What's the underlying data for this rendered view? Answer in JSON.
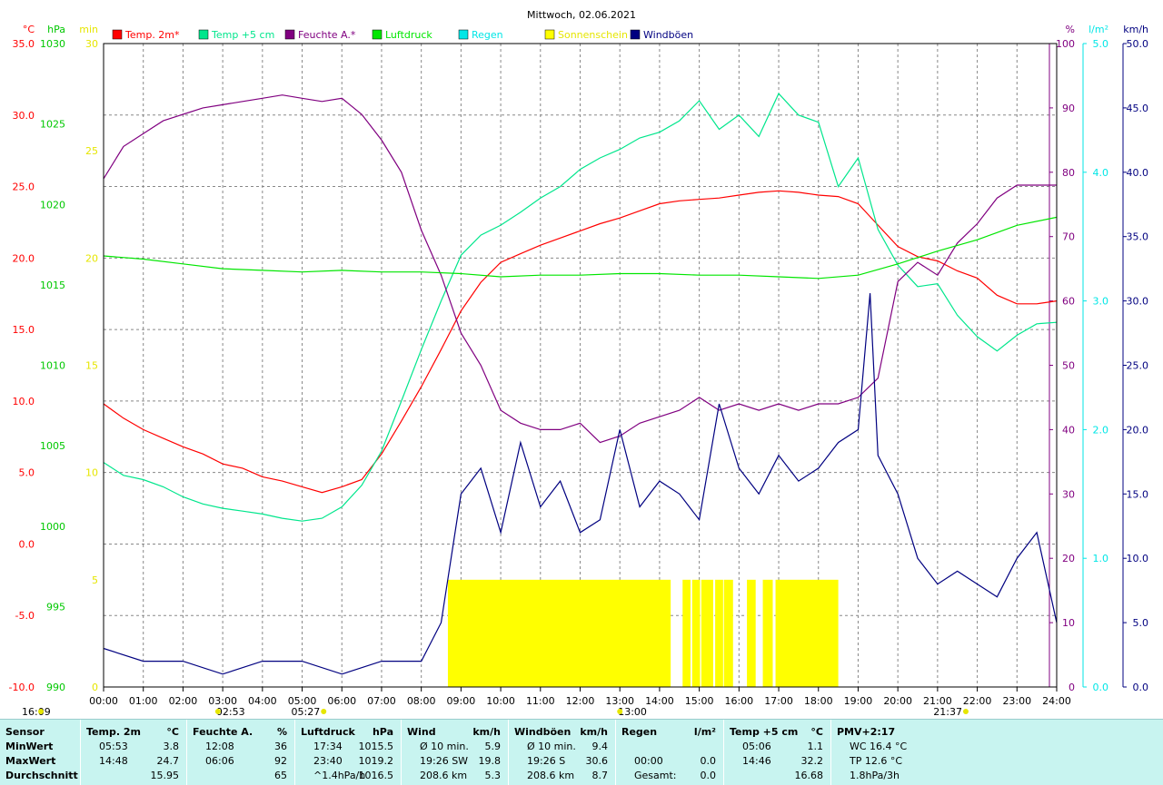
{
  "chart_data": {
    "type": "line",
    "title": "Mittwoch, 02.06.2021",
    "x_axis": {
      "range_hours": [
        0,
        24
      ],
      "ticks": [
        "00:00",
        "01:00",
        "02:00",
        "03:00",
        "04:00",
        "05:00",
        "06:00",
        "07:00",
        "08:00",
        "09:00",
        "10:00",
        "11:00",
        "12:00",
        "13:00",
        "14:00",
        "15:00",
        "16:00",
        "17:00",
        "18:00",
        "19:00",
        "20:00",
        "21:00",
        "22:00",
        "23:00",
        "24:00"
      ],
      "markers": [
        {
          "label": "16:09",
          "hour": -1.0,
          "row": 2,
          "color": "#e6e600"
        },
        {
          "label": "02:53",
          "hour": 2.88,
          "row": 1,
          "color": "#e6e600"
        },
        {
          "label": "05:27",
          "hour": 5.45,
          "row": 2,
          "color": "#e6e600"
        },
        {
          "label": "13:00",
          "hour": 13.0,
          "row": 1,
          "color": "#e6e600"
        },
        {
          "label": "21:37",
          "hour": 21.62,
          "row": 2,
          "color": "#e6e600"
        }
      ]
    },
    "axes": [
      {
        "unit": "°C",
        "color": "#ff0000",
        "ticks": [
          "-10.0",
          "-5.0",
          "0.0",
          "5.0",
          "10.0",
          "15.0",
          "20.0",
          "25.0",
          "30.0",
          "35.0"
        ],
        "range": [
          -10,
          35
        ]
      },
      {
        "unit": "hPa",
        "color": "#00c800",
        "ticks": [
          "990",
          "995",
          "1000",
          "1005",
          "1010",
          "1015",
          "1020",
          "1025",
          "1030"
        ],
        "range": [
          990,
          1030
        ]
      },
      {
        "unit": "min",
        "color": "#e6e600",
        "ticks": [
          "0",
          "5",
          "10",
          "15",
          "20",
          "25",
          "30"
        ],
        "range": [
          0,
          30
        ]
      },
      {
        "unit": "%",
        "color": "#800080",
        "ticks": [
          "0",
          "10",
          "20",
          "30",
          "40",
          "50",
          "60",
          "70",
          "80",
          "90",
          "100"
        ],
        "range": [
          0,
          100
        ]
      },
      {
        "unit": "l/m²",
        "color": "#00e6e6",
        "ticks": [
          "0.0",
          "1.0",
          "2.0",
          "3.0",
          "4.0",
          "5.0"
        ],
        "range": [
          0,
          5
        ]
      },
      {
        "unit": "km/h",
        "color": "#000080",
        "ticks": [
          "0.0",
          "5.0",
          "10.0",
          "15.0",
          "20.0",
          "25.0",
          "30.0",
          "35.0",
          "40.0",
          "45.0",
          "50.0"
        ],
        "range": [
          0,
          50
        ]
      }
    ],
    "legend": [
      {
        "name": "Temp. 2m*",
        "color": "#ff0000"
      },
      {
        "name": "Temp +5 cm",
        "color": "#00e68c"
      },
      {
        "name": "Feuchte A.*",
        "color": "#800080"
      },
      {
        "name": "Luftdruck",
        "color": "#00e600"
      },
      {
        "name": "Regen",
        "color": "#00e6e6"
      },
      {
        "name": "Sonnenschein",
        "color": "#ffff00"
      },
      {
        "name": "Windböen",
        "color": "#000080"
      }
    ],
    "series": [
      {
        "name": "Temp. 2m*",
        "axis": "°C",
        "color": "#ff0000",
        "x": [
          0,
          0.5,
          1,
          1.5,
          2,
          2.5,
          3,
          3.5,
          4,
          4.5,
          5,
          5.5,
          6,
          6.5,
          7,
          7.5,
          8,
          8.5,
          9,
          9.5,
          10,
          10.5,
          11,
          11.5,
          12,
          12.5,
          13,
          13.5,
          14,
          14.5,
          15,
          15.5,
          16,
          16.5,
          17,
          17.5,
          18,
          18.5,
          19,
          19.5,
          20,
          20.5,
          21,
          21.5,
          22,
          22.5,
          23,
          23.5,
          24
        ],
        "values": [
          9.8,
          8.8,
          8.0,
          7.4,
          6.8,
          6.3,
          5.6,
          5.3,
          4.7,
          4.4,
          4.0,
          3.6,
          4.0,
          4.5,
          6.3,
          8.6,
          11.0,
          13.6,
          16.3,
          18.3,
          19.7,
          20.3,
          20.9,
          21.4,
          21.9,
          22.4,
          22.8,
          23.3,
          23.8,
          24.0,
          24.1,
          24.2,
          24.4,
          24.6,
          24.7,
          24.6,
          24.4,
          24.3,
          23.8,
          22.3,
          20.8,
          20.1,
          19.8,
          19.1,
          18.6,
          17.4,
          16.8,
          16.8,
          17.0
        ]
      },
      {
        "name": "Temp +5 cm",
        "axis": "°C",
        "color": "#00e68c",
        "x": [
          0,
          0.5,
          1,
          1.5,
          2,
          2.5,
          3,
          3.5,
          4,
          4.5,
          5,
          5.5,
          6,
          6.5,
          7,
          7.5,
          8,
          8.5,
          9,
          9.5,
          10,
          10.5,
          11,
          11.5,
          12,
          12.5,
          13,
          13.5,
          14,
          14.5,
          15,
          15.5,
          16,
          16.5,
          17,
          17.5,
          18,
          18.5,
          19,
          19.5,
          20,
          20.5,
          21,
          21.5,
          22,
          22.5,
          23,
          23.5,
          24
        ],
        "values": [
          5.7,
          4.8,
          4.5,
          4.0,
          3.3,
          2.8,
          2.5,
          2.3,
          2.1,
          1.8,
          1.6,
          1.8,
          2.6,
          4.1,
          6.5,
          10.0,
          13.6,
          17.0,
          20.2,
          21.6,
          22.3,
          23.2,
          24.2,
          25.0,
          26.2,
          27.0,
          27.6,
          28.4,
          28.8,
          29.6,
          31.0,
          29.0,
          30.0,
          28.5,
          31.5,
          30.0,
          29.5,
          25.0,
          27.0,
          22.0,
          19.5,
          18.0,
          18.2,
          16.0,
          14.5,
          13.5,
          14.6,
          15.4,
          15.5
        ]
      },
      {
        "name": "Feuchte A.*",
        "axis": "%",
        "color": "#800080",
        "x": [
          0,
          0.5,
          1,
          1.5,
          2,
          2.5,
          3,
          3.5,
          4,
          4.5,
          5,
          5.5,
          6,
          6.5,
          7,
          7.5,
          8,
          8.5,
          9,
          9.5,
          10,
          10.5,
          11,
          11.5,
          12,
          12.5,
          13,
          13.5,
          14,
          14.5,
          15,
          15.5,
          16,
          16.5,
          17,
          17.5,
          18,
          18.5,
          19,
          19.5,
          20,
          20.5,
          21,
          21.5,
          22,
          22.5,
          23,
          23.5,
          24
        ],
        "values": [
          79,
          84,
          86,
          88,
          89,
          90,
          90.5,
          91,
          91.5,
          92,
          91.5,
          91,
          91.5,
          89,
          85,
          80,
          71,
          64,
          55,
          50,
          43,
          41,
          40,
          40,
          41,
          38,
          39,
          41,
          42,
          43,
          45,
          43,
          44,
          43,
          44,
          43,
          44,
          44,
          45,
          48,
          63,
          66,
          64,
          69,
          72,
          76,
          78,
          78,
          78
        ]
      },
      {
        "name": "Luftdruck",
        "axis": "hPa",
        "color": "#00e600",
        "x": [
          0,
          1,
          2,
          3,
          4,
          5,
          6,
          7,
          8,
          9,
          10,
          11,
          12,
          13,
          14,
          15,
          16,
          17,
          18,
          19,
          20,
          21,
          22,
          23,
          24
        ],
        "values": [
          1016.8,
          1016.6,
          1016.3,
          1016.0,
          1015.9,
          1015.8,
          1015.9,
          1015.8,
          1015.8,
          1015.7,
          1015.5,
          1015.6,
          1015.6,
          1015.7,
          1015.7,
          1015.6,
          1015.6,
          1015.5,
          1015.4,
          1015.6,
          1016.3,
          1017.1,
          1017.8,
          1018.7,
          1019.2
        ]
      },
      {
        "name": "Windböen",
        "axis": "km/h",
        "color": "#000080",
        "x": [
          0,
          1,
          2,
          3,
          4,
          5,
          6,
          7,
          8,
          8.5,
          9,
          9.5,
          10,
          10.5,
          11,
          11.5,
          12,
          12.5,
          13,
          13.5,
          14,
          14.5,
          15,
          15.5,
          16,
          16.5,
          17,
          17.5,
          18,
          18.5,
          19,
          19.3,
          19.5,
          20,
          20.5,
          21,
          21.5,
          22,
          22.5,
          23,
          23.5,
          24
        ],
        "values": [
          3,
          2,
          2,
          1,
          2,
          2,
          1,
          2,
          2,
          5,
          15,
          17,
          12,
          19,
          14,
          16,
          12,
          13,
          20,
          14,
          16,
          15,
          13,
          22,
          17,
          15,
          18,
          16,
          17,
          19,
          20,
          30.6,
          18,
          15,
          10,
          8,
          9,
          8,
          7,
          10,
          12,
          5
        ]
      }
    ],
    "sunshine": {
      "axis": "min",
      "value": 5,
      "intervals": [
        [
          8.67,
          14.28
        ],
        [
          14.58,
          14.78
        ],
        [
          14.82,
          15.02
        ],
        [
          15.05,
          15.35
        ],
        [
          15.4,
          15.6
        ],
        [
          15.62,
          15.85
        ],
        [
          16.2,
          16.42
        ],
        [
          16.6,
          16.85
        ],
        [
          16.92,
          18.5
        ]
      ]
    }
  },
  "stats": {
    "columns": [
      {
        "header": "Sensor",
        "header_unit": "",
        "rows": [
          [
            "MinWert"
          ],
          [
            "MaxWert"
          ],
          [
            "Durchschnitt"
          ]
        ]
      },
      {
        "header": "Temp. 2m",
        "header_unit": "°C",
        "rows": [
          [
            "05:53",
            "3.8"
          ],
          [
            "14:48",
            "24.7"
          ],
          [
            "",
            "15.95"
          ]
        ]
      },
      {
        "header": "Feuchte A.",
        "header_unit": "%",
        "rows": [
          [
            "12:08",
            "36"
          ],
          [
            "06:06",
            "92"
          ],
          [
            "",
            "65"
          ]
        ]
      },
      {
        "header": "Luftdruck",
        "header_unit": "hPa",
        "rows": [
          [
            "17:34",
            "1015.5"
          ],
          [
            "23:40",
            "1019.2"
          ],
          [
            "^1.4hPa/h",
            "1016.5"
          ]
        ]
      },
      {
        "header": "Wind",
        "header_unit": "km/h",
        "rows": [
          [
            "Ø 10 min.",
            "5.9"
          ],
          [
            "19:26   SW",
            "19.8"
          ],
          [
            "208.6 km",
            "5.3"
          ]
        ]
      },
      {
        "header": "Windböen",
        "header_unit": "km/h",
        "rows": [
          [
            "Ø 10 min.",
            "9.4"
          ],
          [
            "19:26   S",
            "30.6"
          ],
          [
            "208.6 km",
            "8.7"
          ]
        ]
      },
      {
        "header": "Regen",
        "header_unit": "l/m²",
        "rows": [
          [
            "",
            ""
          ],
          [
            "00:00",
            "0.0"
          ],
          [
            "Gesamt:",
            "0.0"
          ]
        ]
      },
      {
        "header": "Temp +5 cm",
        "header_unit": "°C",
        "rows": [
          [
            "05:06",
            "1.1"
          ],
          [
            "14:46",
            "32.2"
          ],
          [
            "",
            "16.68"
          ]
        ]
      },
      {
        "header": "PMV+2:17",
        "header_unit": "",
        "rows": [
          [
            "WC 16.4 °C"
          ],
          [
            "TP 12.6 °C"
          ],
          [
            "1.8hPa/3h"
          ]
        ]
      }
    ]
  }
}
